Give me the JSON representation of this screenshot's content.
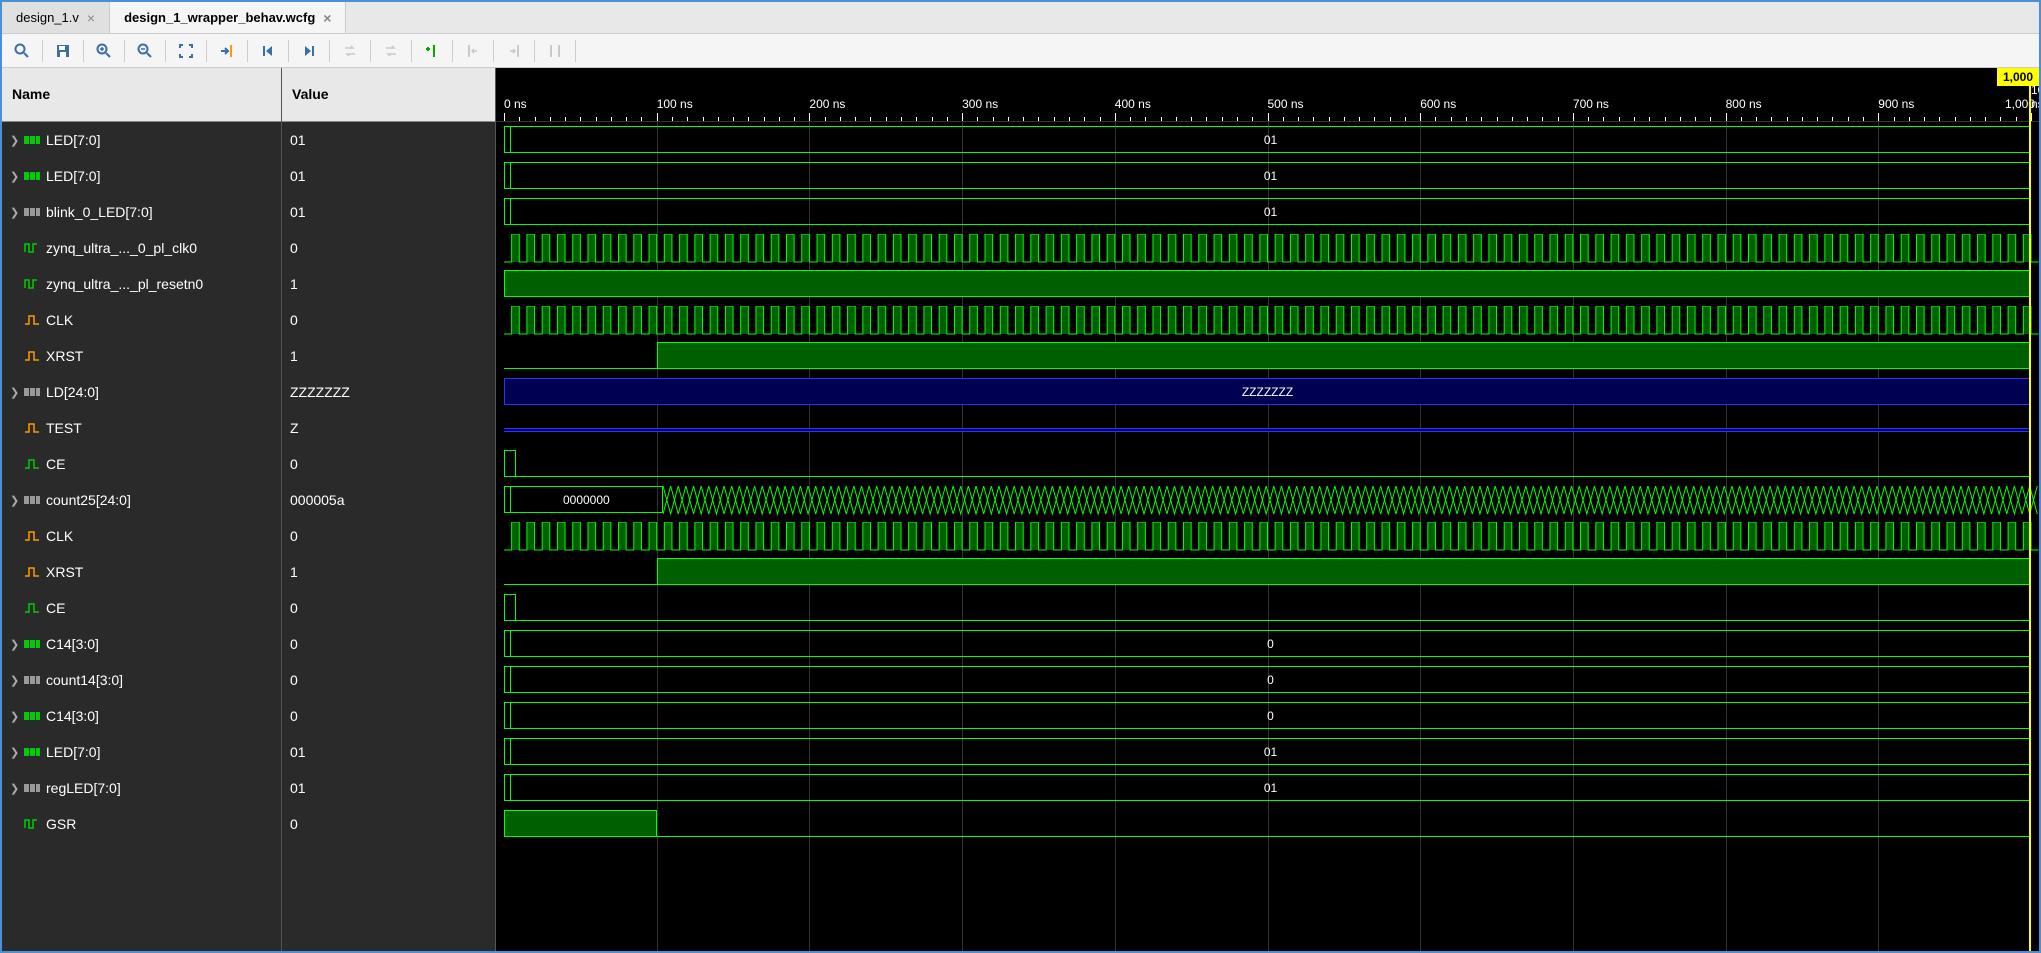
{
  "tabs": [
    {
      "label": "design_1.v",
      "active": false
    },
    {
      "label": "design_1_wrapper_behav.wcfg",
      "active": true
    }
  ],
  "columns": {
    "name_header": "Name",
    "value_header": "Value"
  },
  "time_marker": "1,000",
  "time_end_label": "1,000",
  "ruler": {
    "start": 0,
    "end": 1000,
    "major_step": 100,
    "unit": "ns"
  },
  "colors": {
    "wave_green": "#00ff00",
    "wave_green_fill": "#006000",
    "wave_blue": "#3030ff",
    "wave_blue_fill": "#000050",
    "cursor": "#ffff00",
    "background": "#000000",
    "panel_bg": "#2a2a2a",
    "grid": "#333333"
  },
  "signals": [
    {
      "name": "LED[7:0]",
      "value": "01",
      "expandable": true,
      "icon": "bus-green",
      "wave": {
        "type": "bus",
        "label": "01",
        "bracket": true
      }
    },
    {
      "name": "LED[7:0]",
      "value": "01",
      "expandable": true,
      "icon": "bus-green",
      "wave": {
        "type": "bus",
        "label": "01",
        "bracket": true
      }
    },
    {
      "name": "blink_0_LED[7:0]",
      "value": "01",
      "expandable": true,
      "icon": "bus-grey",
      "wave": {
        "type": "bus",
        "label": "01",
        "bracket": true
      }
    },
    {
      "name": "zynq_ultra_..._0_pl_clk0",
      "value": "0",
      "expandable": false,
      "icon": "clk",
      "wave": {
        "type": "clock",
        "period": 10,
        "fill": true
      }
    },
    {
      "name": "zynq_ultra_..._pl_resetn0",
      "value": "1",
      "expandable": false,
      "icon": "clk",
      "wave": {
        "type": "high-fill"
      }
    },
    {
      "name": "CLK",
      "value": "0",
      "expandable": false,
      "icon": "sig-orange",
      "wave": {
        "type": "clock",
        "period": 10,
        "fill": true
      }
    },
    {
      "name": "XRST",
      "value": "1",
      "expandable": false,
      "icon": "sig-orange",
      "wave": {
        "type": "step-high",
        "step_at": 100,
        "fill": true
      }
    },
    {
      "name": "LD[24:0]",
      "value": "ZZZZZZZ",
      "expandable": true,
      "icon": "bus-grey",
      "wave": {
        "type": "bus-z",
        "label": "ZZZZZZZ"
      }
    },
    {
      "name": "TEST",
      "value": "Z",
      "expandable": false,
      "icon": "sig-orange",
      "wave": {
        "type": "z-line"
      }
    },
    {
      "name": "CE",
      "value": "0",
      "expandable": false,
      "icon": "sig-green",
      "wave": {
        "type": "pulse-low",
        "pulse_end": 8
      }
    },
    {
      "name": "count25[24:0]",
      "value": "000005a",
      "expandable": true,
      "icon": "bus-grey",
      "wave": {
        "type": "counter",
        "initial": "0000000",
        "change_at": 100
      }
    },
    {
      "name": "CLK",
      "value": "0",
      "expandable": false,
      "icon": "sig-orange",
      "wave": {
        "type": "clock",
        "period": 10,
        "fill": true
      }
    },
    {
      "name": "XRST",
      "value": "1",
      "expandable": false,
      "icon": "sig-orange",
      "wave": {
        "type": "step-high",
        "step_at": 100,
        "fill": true
      }
    },
    {
      "name": "CE",
      "value": "0",
      "expandable": false,
      "icon": "sig-green",
      "wave": {
        "type": "pulse-low",
        "pulse_end": 8
      }
    },
    {
      "name": "C14[3:0]",
      "value": "0",
      "expandable": true,
      "icon": "bus-green",
      "wave": {
        "type": "bus",
        "label": "0",
        "bracket": true
      }
    },
    {
      "name": "count14[3:0]",
      "value": "0",
      "expandable": true,
      "icon": "bus-grey",
      "wave": {
        "type": "bus",
        "label": "0",
        "bracket": true
      }
    },
    {
      "name": "C14[3:0]",
      "value": "0",
      "expandable": true,
      "icon": "bus-green",
      "wave": {
        "type": "bus",
        "label": "0",
        "bracket": true
      }
    },
    {
      "name": "LED[7:0]",
      "value": "01",
      "expandable": true,
      "icon": "bus-green",
      "wave": {
        "type": "bus",
        "label": "01",
        "bracket": true
      }
    },
    {
      "name": "regLED[7:0]",
      "value": "01",
      "expandable": true,
      "icon": "bus-grey",
      "wave": {
        "type": "bus",
        "label": "01",
        "bracket": true
      }
    },
    {
      "name": "GSR",
      "value": "0",
      "expandable": false,
      "icon": "clk",
      "wave": {
        "type": "pulse-high-fill",
        "pulse_end": 100
      }
    }
  ]
}
